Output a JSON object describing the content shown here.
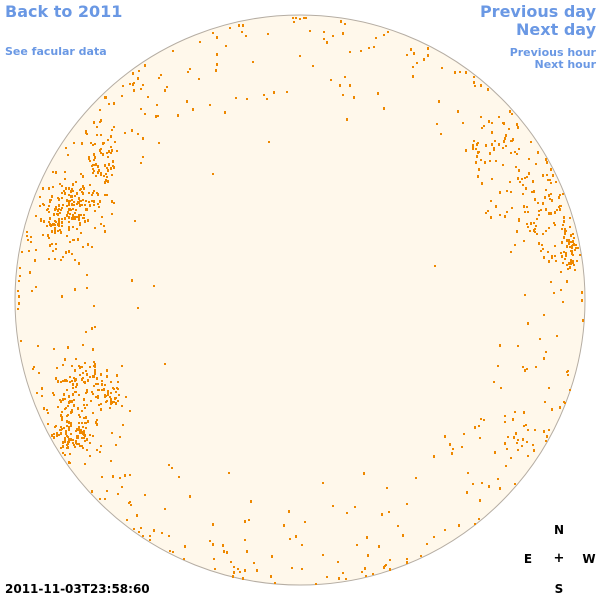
{
  "nav": {
    "back_label": "Back to 2011",
    "facular_label": "See facular data",
    "prev_day_label": "Previous day",
    "next_day_label": "Next day",
    "prev_hour_label": "Previous hour",
    "next_hour_label": "Next hour"
  },
  "timestamp": "2011-11-03T23:58:60",
  "compass": {
    "north": "N",
    "east": "E",
    "center": "+",
    "west": "W",
    "south": "S"
  },
  "colors": {
    "link": "#6a98e4",
    "disk_fill": "#fff8eb",
    "disk_stroke": "#b5ada3",
    "facula_dot": "#ee8800"
  }
}
